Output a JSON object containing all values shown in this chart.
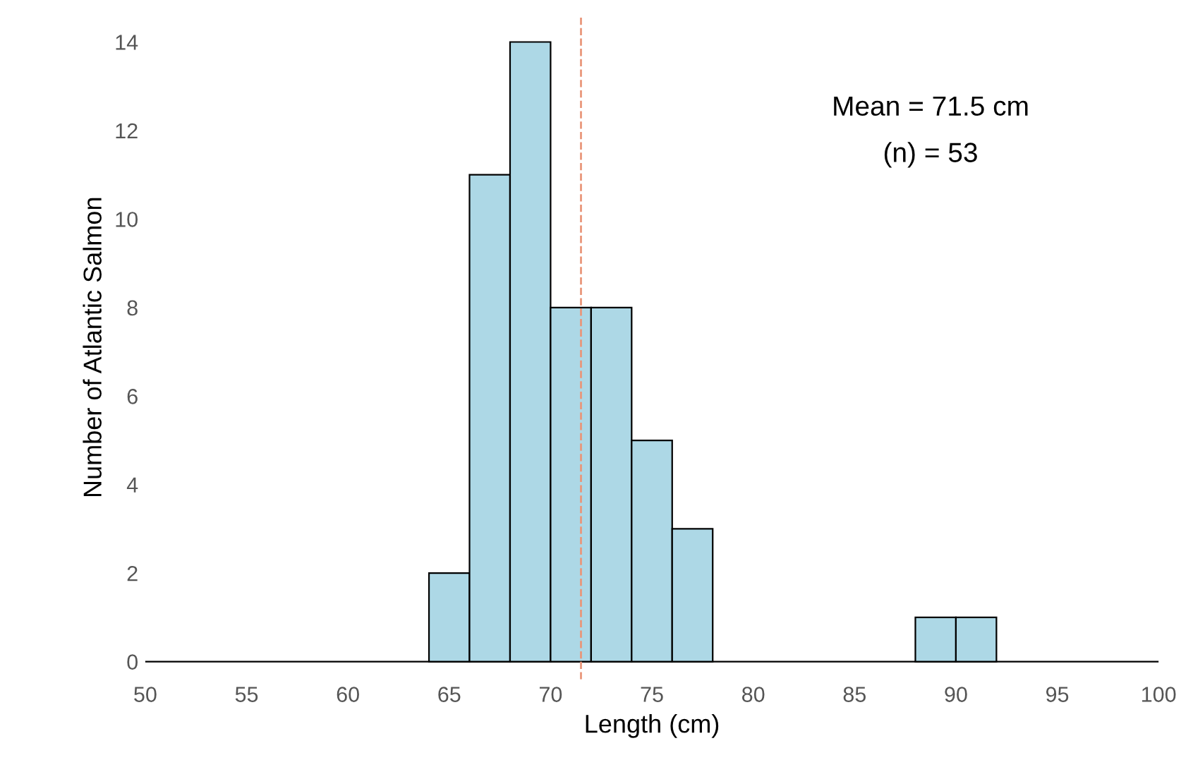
{
  "chart_data": {
    "type": "histogram",
    "xlabel": "Length (cm)",
    "ylabel": "Number of Atlantic Salmon",
    "bins": [
      50,
      52,
      54,
      56,
      58,
      60,
      62,
      64,
      66,
      68,
      70,
      72,
      74,
      76,
      78,
      80,
      82,
      84,
      86,
      88,
      90,
      92,
      94,
      96,
      98,
      100
    ],
    "values": [
      0,
      0,
      0,
      0,
      0,
      0,
      0,
      2,
      11,
      14,
      8,
      8,
      5,
      3,
      0,
      0,
      0,
      0,
      0,
      1,
      1,
      0,
      0,
      0,
      0
    ],
    "color": "#add8e6",
    "xlim": [
      50,
      100
    ],
    "ylim": [
      -0.4,
      14.6
    ],
    "xticks": [
      50,
      55,
      60,
      65,
      70,
      75,
      80,
      85,
      90,
      95,
      100
    ],
    "yticks": [
      0,
      2,
      4,
      6,
      8,
      10,
      12,
      14
    ],
    "ref_lines": [
      {
        "axis": "x",
        "value": 71.5,
        "color": "#e9967a",
        "line_style": "dashed"
      }
    ],
    "annotations": [
      "Mean = 71.5 cm",
      "(n) = 53"
    ],
    "grid": false,
    "legend": false
  }
}
